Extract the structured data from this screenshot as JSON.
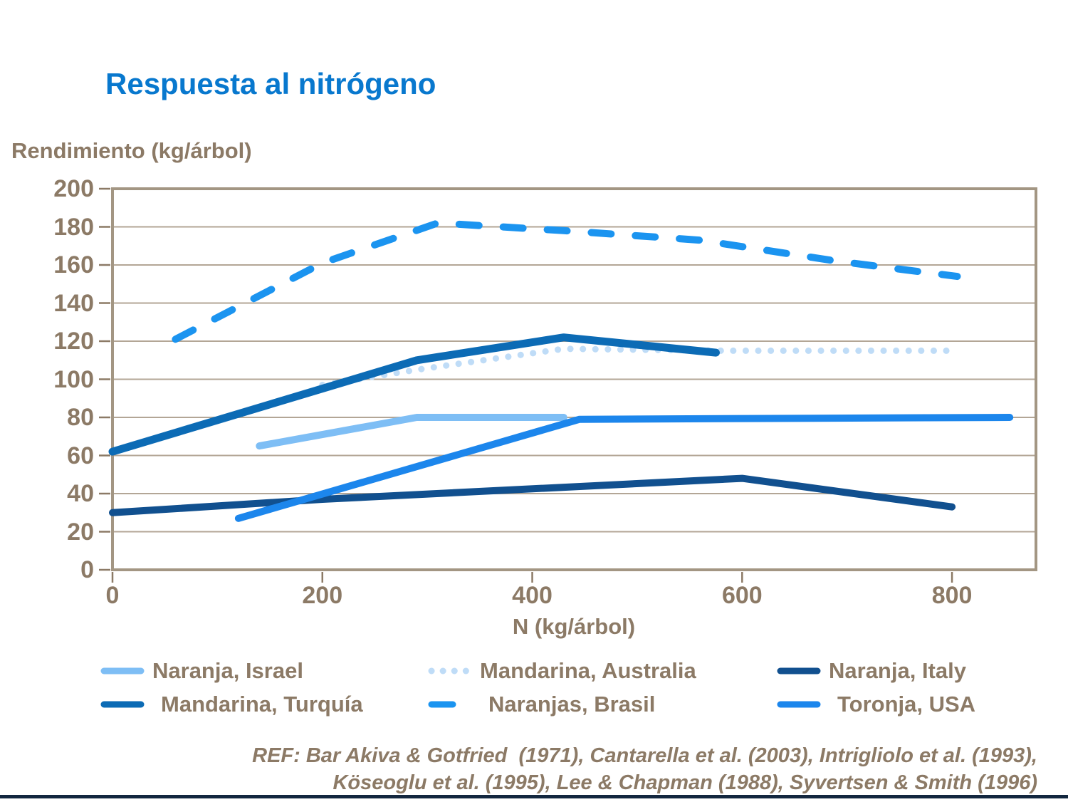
{
  "slide": {
    "title": "Respuesta al nitrógeno",
    "footer": {
      "ref_line1": "REF: Bar Akiva & Gotfried  (1971), Cantarella et al. (2003), Intrigliolo et al. (1993),",
      "ref_line2": "Köseoglu et al. (1995), Lee & Chapman (1988), Syvertsen & Smith (1996)"
    }
  },
  "colors": {
    "title_blue": "#0878CE",
    "axis_text_brown": "#8C7A66",
    "grid_line": "#B3A696",
    "plot_border": "#A39683",
    "tick": "#8C7A66",
    "bottom_bar_navy": "#13273F"
  },
  "chart_data": {
    "type": "line",
    "title": "Respuesta al nitrógeno",
    "xlabel": "N (kg/árbol)",
    "ylabel": "Rendimiento (kg/árbol)",
    "xlim": [
      0,
      880
    ],
    "ylim": [
      0,
      200
    ],
    "xticks": [
      0,
      200,
      400,
      600,
      800
    ],
    "yticks": [
      0,
      20,
      40,
      60,
      80,
      100,
      120,
      140,
      160,
      180,
      200
    ],
    "grid": "horizontal-only",
    "legend_position": "bottom",
    "series": [
      {
        "key": "naranja-israel",
        "name": "Naranja, Israel",
        "color": "#7EBEF5",
        "style": "solid",
        "width": 10,
        "points": [
          [
            140,
            65
          ],
          [
            290,
            80
          ],
          [
            430,
            80
          ]
        ]
      },
      {
        "key": "mandarina-australia",
        "name": "Mandarina, Australia",
        "color": "#BFDCF7",
        "style": "dotted",
        "width": 9,
        "points": [
          [
            200,
            97
          ],
          [
            290,
            105
          ],
          [
            430,
            116
          ],
          [
            580,
            115
          ],
          [
            800,
            115
          ]
        ]
      },
      {
        "key": "naranja-italy",
        "name": "Naranja, Italy",
        "color": "#11508F",
        "style": "solid",
        "width": 10,
        "points": [
          [
            0,
            30
          ],
          [
            200,
            37
          ],
          [
            600,
            48
          ],
          [
            800,
            33
          ]
        ]
      },
      {
        "key": "mandarina-turquia",
        "name": "Mandarina, Turquía",
        "color": "#0C6BB5",
        "style": "solid",
        "width": 11,
        "points": [
          [
            0,
            62
          ],
          [
            290,
            110
          ],
          [
            430,
            122
          ],
          [
            575,
            114
          ]
        ]
      },
      {
        "key": "naranjas-brasil",
        "name": "Naranjas, Brasil",
        "color": "#1B94F0",
        "style": "dashed",
        "width": 10,
        "points": [
          [
            60,
            121
          ],
          [
            200,
            161
          ],
          [
            310,
            182
          ],
          [
            430,
            178
          ],
          [
            560,
            173
          ],
          [
            690,
            162
          ],
          [
            805,
            154
          ]
        ]
      },
      {
        "key": "toronja-usa",
        "name": "Toronja, USA",
        "color": "#1C86EC",
        "style": "solid",
        "width": 10,
        "points": [
          [
            120,
            27
          ],
          [
            445,
            79
          ],
          [
            855,
            80
          ]
        ]
      }
    ]
  }
}
